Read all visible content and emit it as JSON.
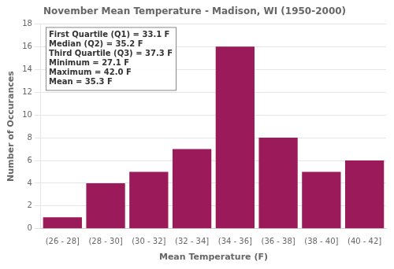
{
  "chart_data": {
    "type": "bar",
    "title": "November Mean Temperature - Madison, WI (1950-2000)",
    "xlabel": "Mean Temperature (F)",
    "ylabel": "Number of Occurances",
    "categories": [
      "(26 - 28]",
      "(28 - 30]",
      "(30 - 32]",
      "(32 - 34]",
      "(34 - 36]",
      "(36 - 38]",
      "(38 - 40]",
      "(40 - 42]"
    ],
    "values": [
      1,
      4,
      5,
      7,
      16,
      8,
      5,
      6
    ],
    "color": "#9B1B5A",
    "ylim": [
      0,
      18
    ],
    "yticks": [
      0,
      2,
      4,
      6,
      8,
      10,
      12,
      14,
      16,
      18
    ],
    "grid": true,
    "annotations": [
      "First Quartile (Q1) = 33.1 F",
      "Median (Q2) = 35.2 F",
      "Third Quartile (Q3) = 37.3 F",
      "Minimum = 27.1 F",
      "Maximum = 42.0 F",
      "Mean = 35.3 F"
    ]
  }
}
